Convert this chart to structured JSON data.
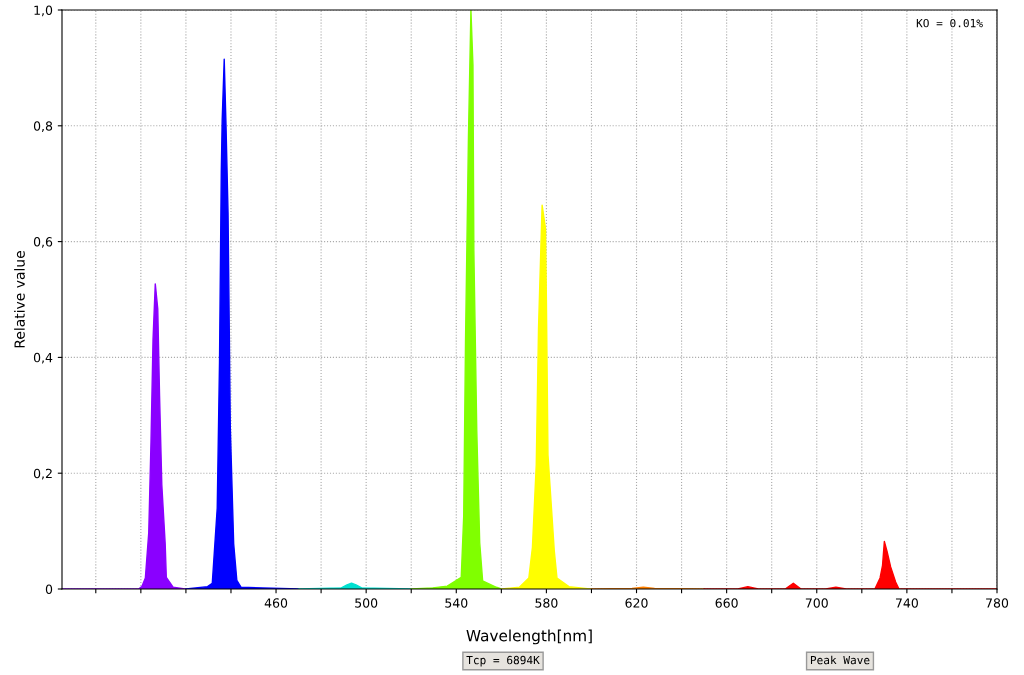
{
  "chart_data": {
    "type": "area",
    "xlabel": "Wavelength[nm]",
    "ylabel": "Relative value",
    "annotations": [
      "KO = 0.01%",
      "Tcp = 6894K",
      "Peak Wave"
    ],
    "xlim": [
      365,
      780
    ],
    "ylim": [
      0,
      1.0
    ],
    "xticks": [
      {
        "value": 380,
        "label": null
      },
      {
        "value": 400,
        "label": null
      },
      {
        "value": 420,
        "label": null
      },
      {
        "value": 440,
        "label": null
      },
      460,
      {
        "value": 480,
        "label": null
      },
      500,
      {
        "value": 520,
        "label": null
      },
      540,
      {
        "value": 560,
        "label": null
      },
      580,
      {
        "value": 600,
        "label": null
      },
      620,
      {
        "value": 640,
        "label": null
      },
      660,
      {
        "value": 680,
        "label": null
      },
      700,
      {
        "value": 720,
        "label": null
      },
      740,
      {
        "value": 760,
        "label": null
      },
      780
    ],
    "yticks": [
      {
        "value": 0,
        "label": "0"
      },
      {
        "value": 0.2,
        "label": "0,2"
      },
      {
        "value": 0.4,
        "label": "0,4"
      },
      {
        "value": 0.6,
        "label": "0,6"
      },
      {
        "value": 0.8,
        "label": "0,8"
      },
      {
        "value": 1.0,
        "label": "1,0"
      }
    ],
    "grid": true,
    "legend": false,
    "series": [
      {
        "color": "#8a00ff",
        "x": [
          365,
          399,
          400.4,
          402.0,
          403.5,
          404.5,
          405.4,
          406.4,
          407.5,
          408.3,
          409.3,
          410.8,
          411.3,
          414.3,
          420
        ],
        "values": [
          0,
          0,
          0.004,
          0.019,
          0.097,
          0.254,
          0.43,
          0.527,
          0.484,
          0.334,
          0.18,
          0.078,
          0.02,
          0.003,
          0
        ]
      },
      {
        "color": "#0000ff",
        "x": [
          420,
          429.6,
          431.7,
          433.9,
          434.9,
          435.7,
          436.1,
          437.0,
          437.8,
          438.7,
          439.7,
          441.2,
          442.6,
          444.5,
          470
        ],
        "values": [
          0,
          0.004,
          0.01,
          0.14,
          0.39,
          0.72,
          0.81,
          0.915,
          0.8,
          0.65,
          0.28,
          0.078,
          0.015,
          0.003,
          0
        ]
      },
      {
        "color": "#00e0d0",
        "x": [
          470,
          489,
          491.5,
          493.5,
          495.5,
          498,
          520
        ],
        "values": [
          0,
          0.002,
          0.007,
          0.01,
          0.007,
          0.002,
          0
        ]
      },
      {
        "color": "#80ff00",
        "x": [
          520,
          529.6,
          536.0,
          542.2,
          543.3,
          544.1,
          545.4,
          546.5,
          547.4,
          547.8,
          549.1,
          550.4,
          551.7,
          557.8,
          560
        ],
        "values": [
          0,
          0.002,
          0.005,
          0.02,
          0.126,
          0.427,
          0.78,
          1.0,
          0.905,
          0.584,
          0.273,
          0.08,
          0.014,
          0.003,
          0
        ]
      },
      {
        "color": "#ffff00",
        "x": [
          560,
          568,
          572.2,
          573.8,
          575.5,
          576.5,
          578.1,
          579.6,
          580.0,
          580.7,
          583.5,
          584.7,
          590,
          600
        ],
        "values": [
          0,
          0.003,
          0.019,
          0.072,
          0.215,
          0.45,
          0.663,
          0.623,
          0.5,
          0.232,
          0.066,
          0.019,
          0.004,
          0
        ]
      },
      {
        "color": "#ff8000",
        "x": [
          600,
          618,
          623,
          628,
          650
        ],
        "values": [
          0,
          0.001,
          0.003,
          0.001,
          0
        ]
      },
      {
        "color": "#ff0000",
        "x": [
          650,
          665,
          669.4,
          674,
          686,
          689.6,
          693,
          704,
          708.5,
          713,
          725.8,
          728.1,
          729.2,
          730.0,
          731.2,
          732.8,
          735.0,
          736.5,
          780
        ],
        "values": [
          0,
          0,
          0.004,
          0,
          0,
          0.01,
          0,
          0,
          0.003,
          0,
          0,
          0.019,
          0.041,
          0.082,
          0.065,
          0.038,
          0.012,
          0,
          0
        ]
      }
    ]
  }
}
